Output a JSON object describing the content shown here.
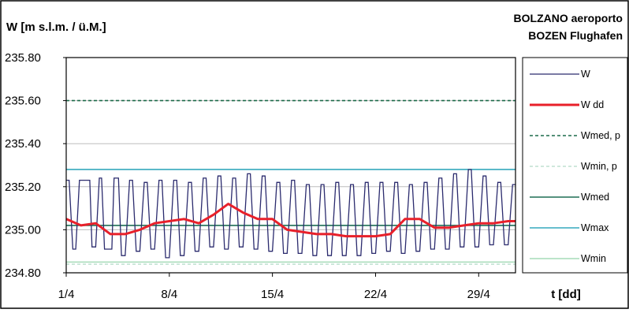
{
  "chart_data": {
    "type": "line",
    "title": "BOLZANO aeroporto",
    "subtitle": "BOZEN Flughafen",
    "ylabel": "W [m s.l.m. / ü.M.]",
    "xlabel": "t [dd]",
    "ylim": [
      234.8,
      235.8
    ],
    "yticks": [
      234.8,
      235.0,
      235.2,
      235.4,
      235.6,
      235.8
    ],
    "ytick_labels": [
      "234.80",
      "235.00",
      "235.20",
      "235.40",
      "235.60",
      "235.80"
    ],
    "xlim": [
      0,
      30.5
    ],
    "xticks": [
      0,
      7,
      14,
      21,
      28
    ],
    "xtick_labels": [
      "1/4",
      "8/4",
      "15/4",
      "22/4",
      "29/4"
    ],
    "legend_position": "right",
    "grid": "horizontal",
    "colors": {
      "W": "#2b2b6e",
      "Wdd": "#e8202a",
      "Wmed_p": "#1c6b4a",
      "Wmin_p": "#bfe0d0",
      "Wmed": "#1f6e55",
      "Wmax": "#35a9bd",
      "Wmin": "#a6dcb8"
    },
    "legend": [
      {
        "key": "W",
        "label": "W",
        "style": "solid-thin"
      },
      {
        "key": "Wdd",
        "label": "W dd",
        "style": "solid-thick"
      },
      {
        "key": "Wmed_p",
        "label": "Wmed, p",
        "style": "dashed"
      },
      {
        "key": "Wmin_p",
        "label": "Wmin, p",
        "style": "dashed-light"
      },
      {
        "key": "Wmed",
        "label": "Wmed",
        "style": "solid"
      },
      {
        "key": "Wmax",
        "label": "Wmax",
        "style": "solid"
      },
      {
        "key": "Wmin",
        "label": "Wmin",
        "style": "solid"
      }
    ],
    "series": [
      {
        "name": "Wmed, p",
        "value": 235.6
      },
      {
        "name": "Wmin, p",
        "value": 234.84
      },
      {
        "name": "Wmed",
        "value": 235.02
      },
      {
        "name": "Wmax",
        "value": 235.28
      },
      {
        "name": "Wmin",
        "value": 234.85
      },
      {
        "name": "W dd",
        "x": [
          0,
          1,
          2,
          3,
          4,
          5,
          6,
          7,
          8,
          9,
          10,
          11,
          12,
          13,
          14,
          15,
          16,
          17,
          18,
          19,
          20,
          21,
          22,
          23,
          24,
          25,
          26,
          27,
          28,
          29,
          30,
          30.5
        ],
        "values": [
          235.05,
          235.02,
          235.03,
          234.98,
          234.98,
          235.0,
          235.03,
          235.04,
          235.05,
          235.03,
          235.07,
          235.12,
          235.08,
          235.05,
          235.05,
          235.0,
          234.99,
          234.98,
          234.98,
          234.97,
          234.97,
          234.97,
          234.98,
          235.05,
          235.05,
          235.01,
          235.01,
          235.02,
          235.03,
          235.03,
          235.04,
          235.04
        ]
      },
      {
        "name": "W",
        "x": [
          0,
          0.2,
          0.45,
          0.65,
          0.9,
          1.6,
          1.75,
          2.0,
          2.25,
          2.4,
          2.6,
          3.1,
          3.25,
          3.55,
          3.75,
          4.0,
          4.3,
          4.5,
          4.75,
          5.0,
          5.3,
          5.5,
          5.75,
          6.0,
          6.3,
          6.5,
          6.75,
          7.0,
          7.3,
          7.5,
          7.75,
          8.0,
          8.3,
          8.5,
          8.75,
          9.0,
          9.3,
          9.5,
          9.75,
          10.0,
          10.3,
          10.5,
          10.75,
          11.0,
          11.3,
          11.5,
          11.75,
          12.0,
          12.3,
          12.5,
          12.75,
          13.0,
          13.3,
          13.5,
          13.75,
          14.0,
          14.3,
          14.5,
          14.75,
          15.0,
          15.3,
          15.5,
          15.75,
          16.0,
          16.3,
          16.5,
          16.75,
          17.0,
          17.3,
          17.5,
          17.75,
          18.0,
          18.3,
          18.5,
          18.75,
          19.0,
          19.3,
          19.5,
          19.75,
          20.0,
          20.3,
          20.5,
          20.75,
          21.0,
          21.3,
          21.5,
          21.75,
          22.0,
          22.3,
          22.5,
          22.75,
          23.0,
          23.3,
          23.5,
          23.75,
          24.0,
          24.3,
          24.5,
          24.75,
          25.0,
          25.3,
          25.5,
          25.75,
          26.0,
          26.3,
          26.5,
          26.75,
          27.0,
          27.3,
          27.5,
          27.75,
          28.0,
          28.3,
          28.5,
          28.75,
          29.0,
          29.3,
          29.5,
          29.75,
          30.0,
          30.3,
          30.5
        ],
        "values": [
          235.23,
          235.23,
          234.91,
          234.91,
          235.23,
          235.23,
          234.92,
          234.92,
          235.24,
          235.24,
          234.91,
          234.91,
          235.24,
          235.24,
          234.88,
          234.88,
          235.23,
          235.23,
          234.9,
          234.9,
          235.22,
          235.22,
          234.91,
          234.91,
          235.23,
          235.23,
          234.87,
          234.87,
          235.23,
          235.23,
          234.88,
          234.88,
          235.22,
          235.22,
          234.9,
          234.9,
          235.24,
          235.24,
          234.92,
          234.92,
          235.25,
          235.25,
          234.91,
          234.91,
          235.24,
          235.24,
          234.92,
          234.92,
          235.26,
          235.26,
          234.91,
          234.91,
          235.25,
          235.25,
          234.9,
          234.9,
          235.22,
          235.22,
          234.89,
          234.89,
          235.23,
          235.23,
          234.89,
          234.89,
          235.21,
          235.21,
          234.88,
          234.88,
          235.21,
          235.21,
          234.88,
          234.88,
          235.22,
          235.22,
          234.88,
          234.88,
          235.21,
          235.21,
          234.88,
          234.88,
          235.22,
          235.22,
          234.89,
          234.89,
          235.22,
          235.22,
          234.9,
          234.9,
          235.22,
          235.22,
          234.89,
          234.89,
          235.21,
          235.21,
          234.9,
          234.9,
          235.22,
          235.22,
          234.91,
          234.91,
          235.24,
          235.24,
          234.91,
          234.91,
          235.26,
          235.26,
          234.92,
          234.92,
          235.28,
          235.28,
          234.92,
          234.92,
          235.25,
          235.25,
          234.93,
          234.93,
          235.22,
          235.22,
          234.93,
          234.93,
          235.21,
          235.21
        ]
      }
    ]
  }
}
